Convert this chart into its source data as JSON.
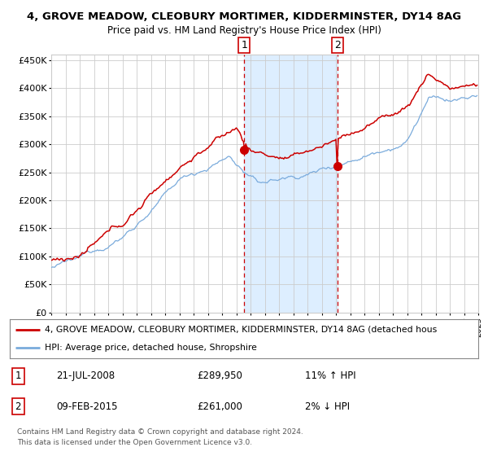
{
  "title": "4, GROVE MEADOW, CLEOBURY MORTIMER, KIDDERMINSTER, DY14 8AG",
  "subtitle": "Price paid vs. HM Land Registry's House Price Index (HPI)",
  "legend_line1": "4, GROVE MEADOW, CLEOBURY MORTIMER, KIDDERMINSTER, DY14 8AG (detached hous",
  "legend_line2": "HPI: Average price, detached house, Shropshire",
  "table_row1": [
    "1",
    "21-JUL-2008",
    "£289,950",
    "11% ↑ HPI"
  ],
  "table_row2": [
    "2",
    "09-FEB-2015",
    "£261,000",
    "2% ↓ HPI"
  ],
  "footnote1": "Contains HM Land Registry data © Crown copyright and database right 2024.",
  "footnote2": "This data is licensed under the Open Government Licence v3.0.",
  "ylim": [
    0,
    460000
  ],
  "yticks": [
    0,
    50000,
    100000,
    150000,
    200000,
    250000,
    300000,
    350000,
    400000,
    450000
  ],
  "start_year": 1995,
  "end_year": 2025,
  "sale1_year": 2008.55,
  "sale1_price": 289950,
  "sale2_year": 2015.1,
  "sale2_price": 261000,
  "red_color": "#cc0000",
  "blue_color": "#7aabdc",
  "shade_color": "#ddeeff",
  "background_color": "#ffffff",
  "grid_color": "#cccccc"
}
